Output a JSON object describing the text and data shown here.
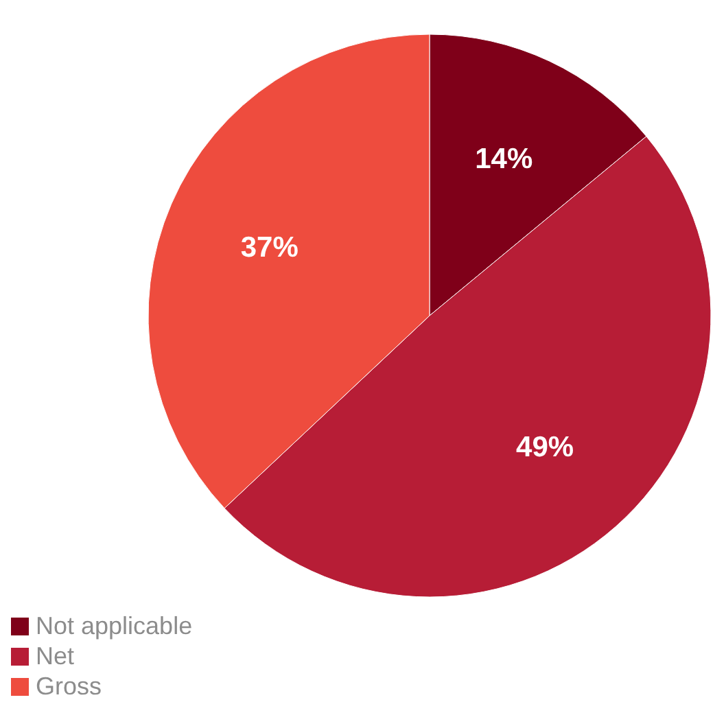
{
  "chart_data": {
    "type": "pie",
    "categories": [
      "Not applicable",
      "Net",
      "Gross"
    ],
    "values": [
      14,
      49,
      37
    ],
    "colors": [
      "#7f0019",
      "#b71d36",
      "#ee4c3e"
    ],
    "value_labels": [
      "14%",
      "49%",
      "37%"
    ],
    "legend": "bottom left"
  }
}
